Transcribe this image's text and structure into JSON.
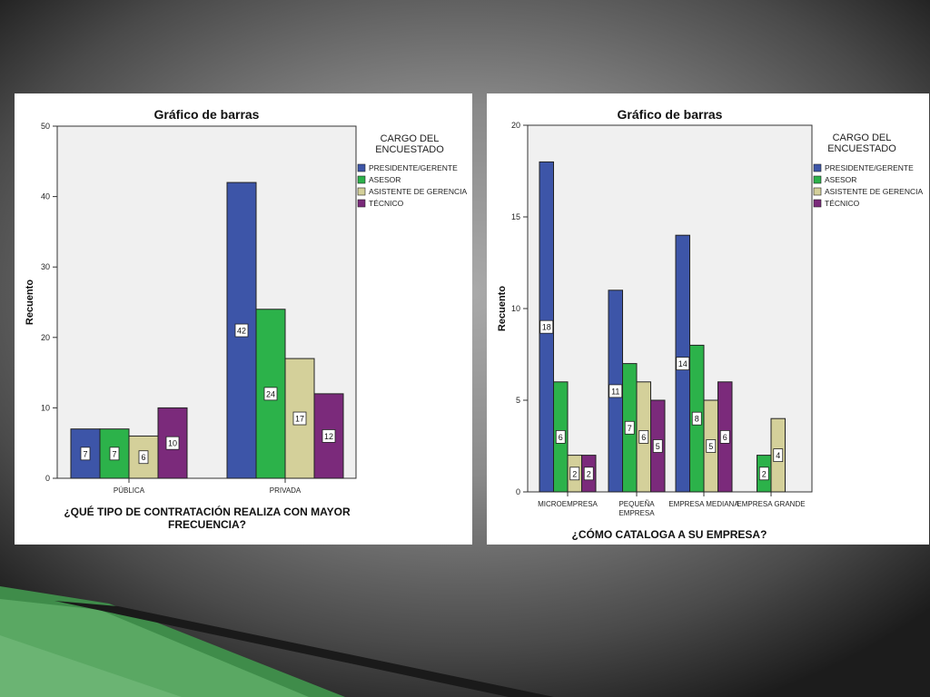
{
  "legend_title_line1": "CARGO DEL",
  "legend_title_line2": "ENCUESTADO",
  "series_names": [
    "PRESIDENTE/GERENTE",
    "ASESOR",
    "ASISTENTE DE GERENCIA",
    "TÉCNICO"
  ],
  "colors": {
    "series": [
      "#3d55a8",
      "#2cb24a",
      "#d4d09a",
      "#7b2a7b"
    ],
    "frame": "#333333"
  },
  "chart_data": [
    {
      "type": "bar",
      "title": "Gráfico de barras",
      "ylabel": "Recuento",
      "xlabel_line1": "¿QUÉ TIPO DE CONTRATACIÓN REALIZA CON MAYOR",
      "xlabel_line2": "FRECUENCIA?",
      "ylim": [
        0,
        50
      ],
      "yticks": [
        0,
        10,
        20,
        30,
        40,
        50
      ],
      "categories": [
        [
          "PÚBLICA"
        ],
        [
          "PRIVADA"
        ]
      ],
      "series": [
        {
          "name": "PRESIDENTE/GERENTE",
          "values": [
            7,
            42
          ]
        },
        {
          "name": "ASESOR",
          "values": [
            7,
            24
          ]
        },
        {
          "name": "ASISTENTE DE GERENCIA",
          "values": [
            6,
            17
          ]
        },
        {
          "name": "TÉCNICO",
          "values": [
            10,
            12
          ]
        }
      ],
      "legend": "top-right",
      "grid": false
    },
    {
      "type": "bar",
      "title": "Gráfico de barras",
      "ylabel": "Recuento",
      "xlabel_line1": "¿CÓMO CATALOGA A SU EMPRESA?",
      "xlabel_line2": "",
      "ylim": [
        0,
        20
      ],
      "yticks": [
        0,
        5,
        10,
        15,
        20
      ],
      "categories": [
        [
          "MICROEMPRESA"
        ],
        [
          "PEQUEÑA",
          "EMPRESA"
        ],
        [
          "EMPRESA MEDIANA"
        ],
        [
          "EMPRESA GRANDE"
        ]
      ],
      "series": [
        {
          "name": "PRESIDENTE/GERENTE",
          "values": [
            18,
            11,
            14,
            0
          ]
        },
        {
          "name": "ASESOR",
          "values": [
            6,
            7,
            8,
            2
          ]
        },
        {
          "name": "ASISTENTE DE GERENCIA",
          "values": [
            2,
            6,
            5,
            4
          ]
        },
        {
          "name": "TÉCNICO",
          "values": [
            2,
            5,
            6,
            0
          ]
        }
      ],
      "legend": "top-right",
      "grid": false
    }
  ]
}
